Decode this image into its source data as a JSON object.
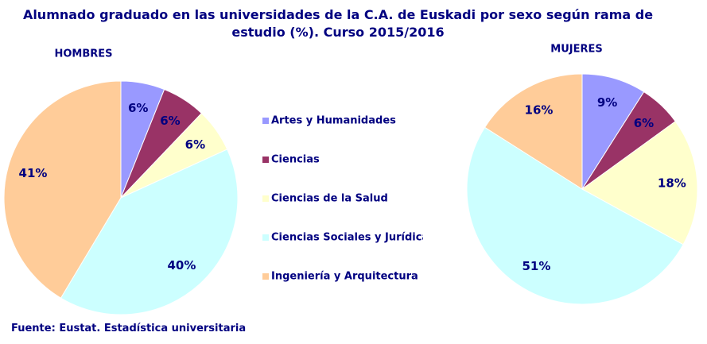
{
  "title": "Alumnado graduado en las universidades de la C.A. de Euskadi por sexo según rama de estudio (%). Curso 2015/2016",
  "source": "Fuente: Eustat. Estadística universitaria",
  "chart_data": [
    {
      "type": "pie",
      "title": "HOMBRES",
      "categories": [
        "Artes y Humanidades",
        "Ciencias",
        "Ciencias de la Salud",
        "Ciencias Sociales y Jurídicas",
        "Ingeniería y Arquitectura"
      ],
      "colors": [
        "#9999ff",
        "#993366",
        "#ffffcc",
        "#ccffff",
        "#ffcc99"
      ],
      "values": [
        6,
        6,
        6,
        40,
        41
      ],
      "value_labels": [
        "6%",
        "6%",
        "6%",
        "40%",
        "41%"
      ]
    },
    {
      "type": "pie",
      "title": "MUJERES",
      "categories": [
        "Artes y Humanidades",
        "Ciencias",
        "Ciencias de la Salud",
        "Ciencias Sociales y Jurídicas",
        "Ingeniería y Arquitectura"
      ],
      "colors": [
        "#9999ff",
        "#993366",
        "#ffffcc",
        "#ccffff",
        "#ffcc99"
      ],
      "values": [
        9,
        6,
        18,
        51,
        16
      ],
      "value_labels": [
        "9%",
        "6%",
        "18%",
        "51%",
        "16%"
      ]
    }
  ]
}
